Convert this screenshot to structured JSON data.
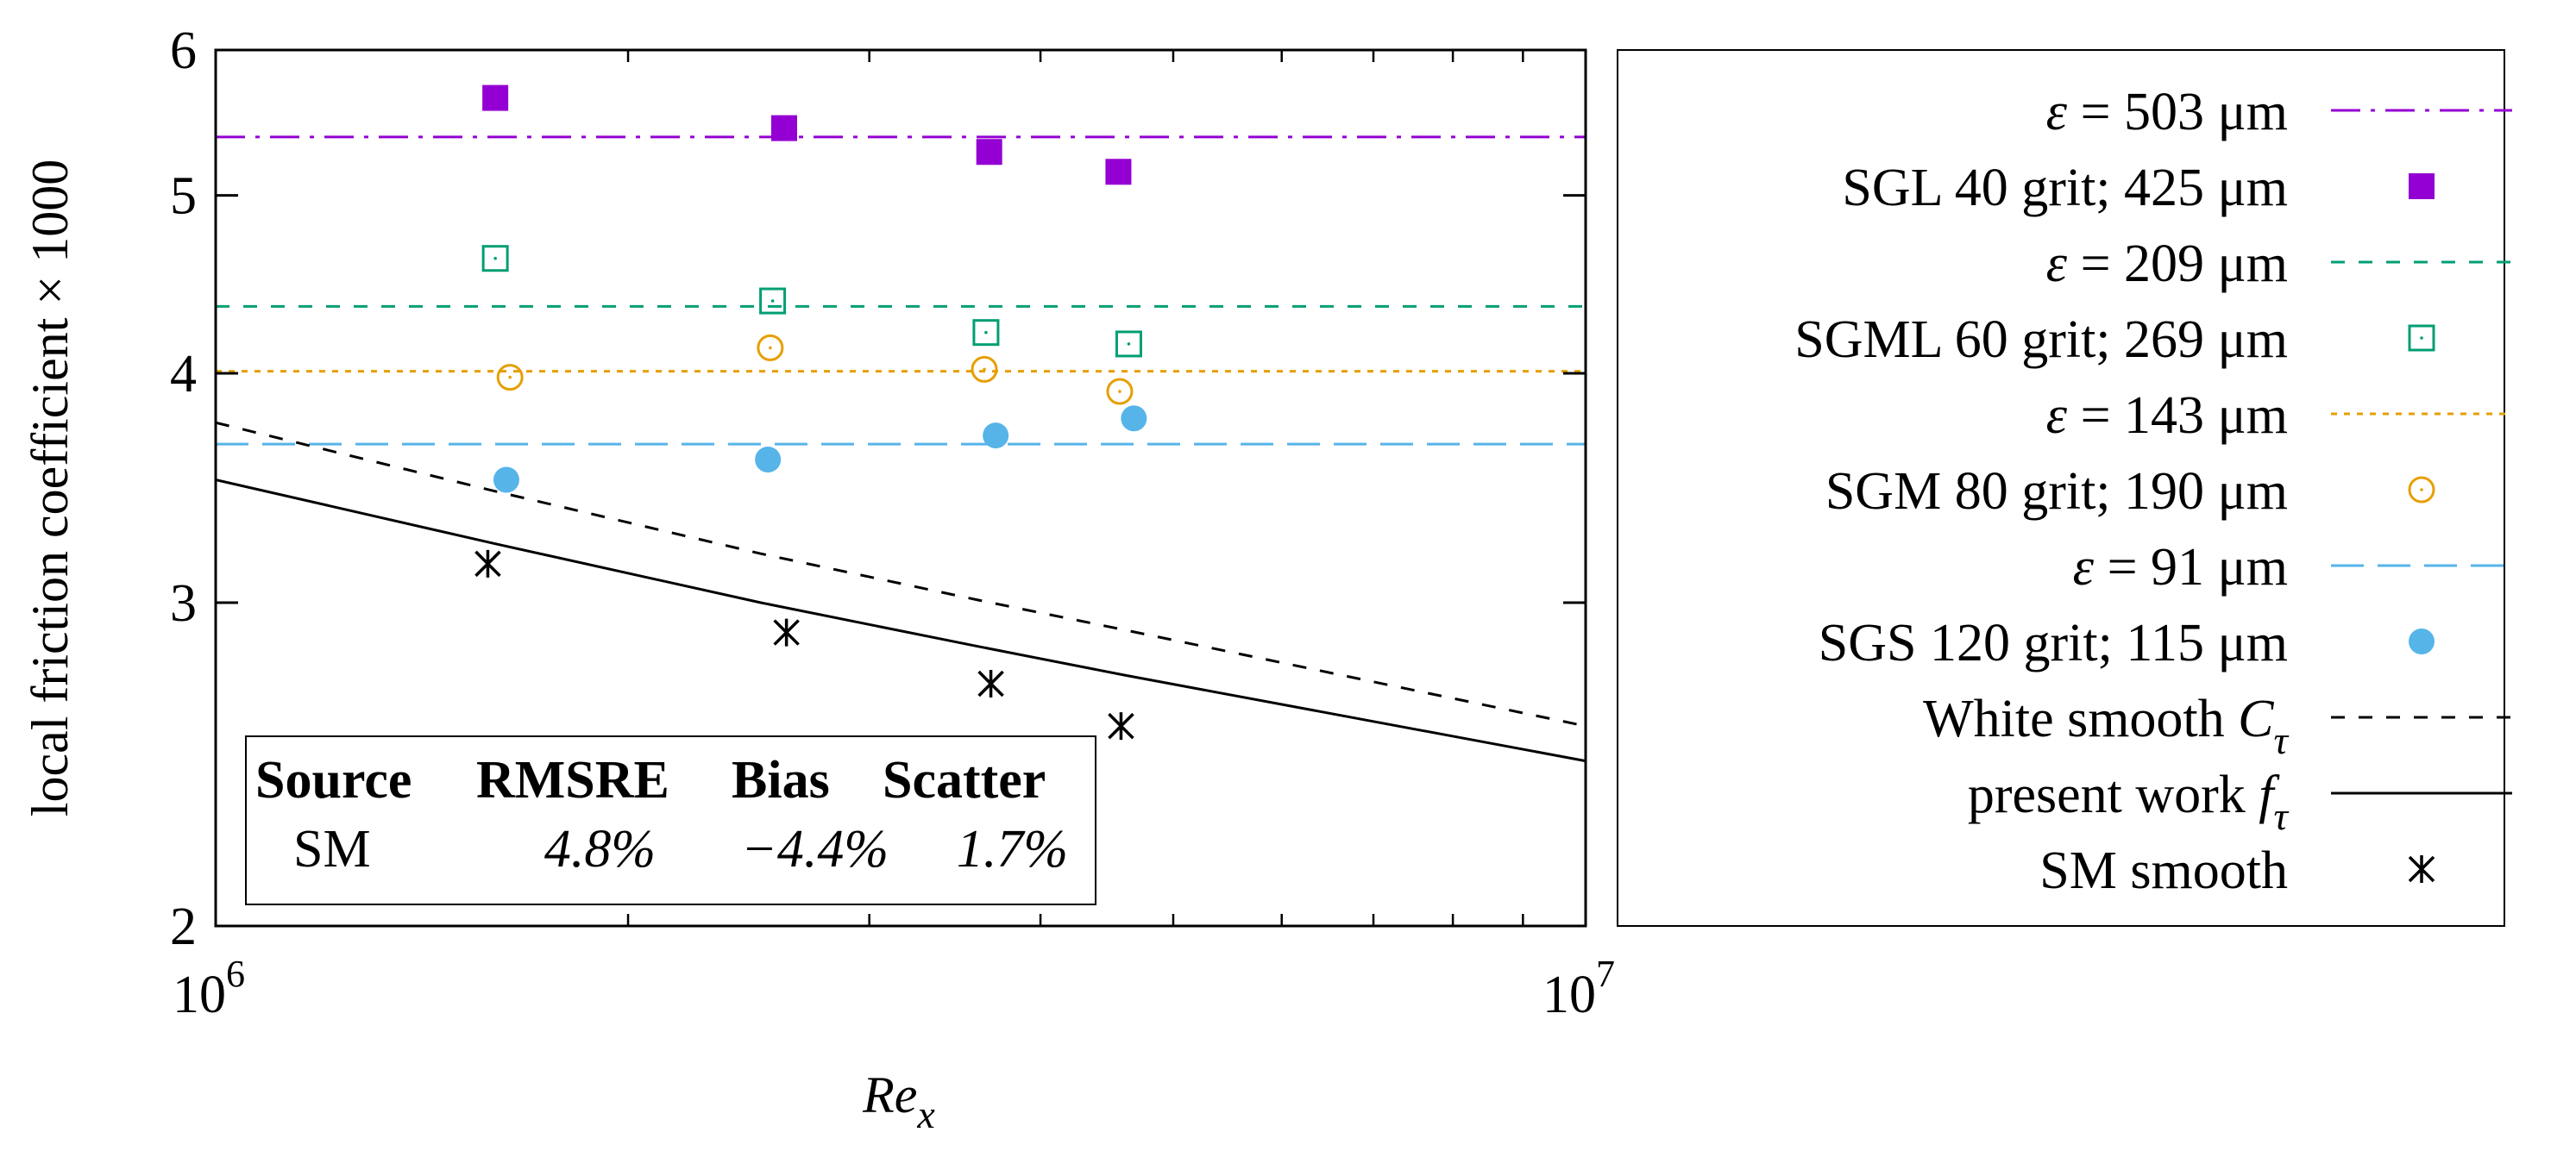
{
  "chart_data": {
    "type": "scatter",
    "title": "",
    "xlabel": {
      "base": "Re",
      "sub": "x"
    },
    "ylabel": "local friction coefficient × 1000",
    "xscale": "log",
    "yscale": "log",
    "xlim": [
      1000000,
      10000000
    ],
    "ylim": [
      2,
      6
    ],
    "grid": false,
    "legend_position": "right, outside plot",
    "xticks": [
      {
        "value": 1000000,
        "base": "10",
        "exp": "6"
      },
      {
        "value": 10000000,
        "base": "10",
        "exp": "7"
      }
    ],
    "yticks": [
      {
        "value": 2,
        "label": "2"
      },
      {
        "value": 3,
        "label": "3"
      },
      {
        "value": 4,
        "label": "4"
      },
      {
        "value": 5,
        "label": "5"
      },
      {
        "value": 6,
        "label": "6"
      }
    ],
    "series": [
      {
        "id": "eps503",
        "kind": "hline",
        "value": 5.38,
        "color": "#9400d3",
        "dash": "dashdot",
        "legend": {
          "greek": "ε",
          "text": " = 503 μm"
        }
      },
      {
        "id": "sgl40",
        "kind": "points",
        "marker": "filled-square",
        "color": "#9400d3",
        "legend": {
          "text": "SGL 40 grit; 425 μm"
        },
        "x": [
          1600000,
          2600000,
          3670000,
          4560000
        ],
        "y": [
          5.65,
          5.44,
          5.28,
          5.15
        ]
      },
      {
        "id": "eps209",
        "kind": "hline",
        "value": 4.35,
        "color": "#009e73",
        "dash": "dashed",
        "legend": {
          "greek": "ε",
          "text": " = 209 μm"
        }
      },
      {
        "id": "sgml60",
        "kind": "points",
        "marker": "open-square",
        "color": "#009e73",
        "legend": {
          "text": "SGML 60 grit; 269 μm"
        },
        "x": [
          1600000,
          2550000,
          3650000,
          4640000
        ],
        "y": [
          4.62,
          4.38,
          4.21,
          4.15
        ]
      },
      {
        "id": "eps143",
        "kind": "hline",
        "value": 4.01,
        "color": "#e69f00",
        "dash": "dotted",
        "legend": {
          "greek": "ε",
          "text": " = 143 μm"
        }
      },
      {
        "id": "sgm80",
        "kind": "points",
        "marker": "open-circle",
        "color": "#e69f00",
        "legend": {
          "text": "SGM 80 grit; 190 μm"
        },
        "x": [
          1640000,
          2540000,
          3640000,
          4570000
        ],
        "y": [
          3.98,
          4.13,
          4.02,
          3.91
        ]
      },
      {
        "id": "eps91",
        "kind": "hline",
        "value": 3.66,
        "color": "#56b4e9",
        "dash": "longdash",
        "legend": {
          "greek": "ε",
          "text": " = 91 μm"
        }
      },
      {
        "id": "sgs120",
        "kind": "points",
        "marker": "filled-circle",
        "color": "#56b4e9",
        "legend": {
          "text": "SGS 120 grit; 115 μm"
        },
        "x": [
          1630000,
          2530000,
          3710000,
          4680000
        ],
        "y": [
          3.5,
          3.59,
          3.7,
          3.78
        ]
      },
      {
        "id": "white",
        "kind": "line",
        "color": "#000000",
        "dash": "dashed",
        "legend": {
          "text": "White smooth ",
          "math": "C",
          "sub": "τ"
        },
        "x": [
          1000000,
          1600000,
          2500000,
          3600000,
          4600000,
          10000000
        ],
        "y": [
          3.76,
          3.45,
          3.19,
          3.01,
          2.9,
          2.57
        ]
      },
      {
        "id": "present",
        "kind": "line",
        "color": "#000000",
        "dash": "solid",
        "legend": {
          "text": "present work ",
          "math": "f",
          "sub": "τ"
        },
        "x": [
          1000000,
          1600000,
          2500000,
          3600000,
          4600000,
          10000000
        ],
        "y": [
          3.5,
          3.23,
          3.0,
          2.84,
          2.74,
          2.46
        ]
      },
      {
        "id": "smsmooth",
        "kind": "points",
        "marker": "asterisk",
        "color": "#000000",
        "legend": {
          "text": "SM smooth"
        },
        "x": [
          1580000,
          2610000,
          3680000,
          4580000
        ],
        "y": [
          3.15,
          2.89,
          2.71,
          2.57
        ]
      }
    ],
    "annotation_table": {
      "headers": [
        "Source",
        "RMSRE",
        "Bias",
        "Scatter"
      ],
      "rows": [
        [
          "SM",
          "4.8%",
          "−4.4%",
          "1.7%"
        ]
      ]
    }
  }
}
